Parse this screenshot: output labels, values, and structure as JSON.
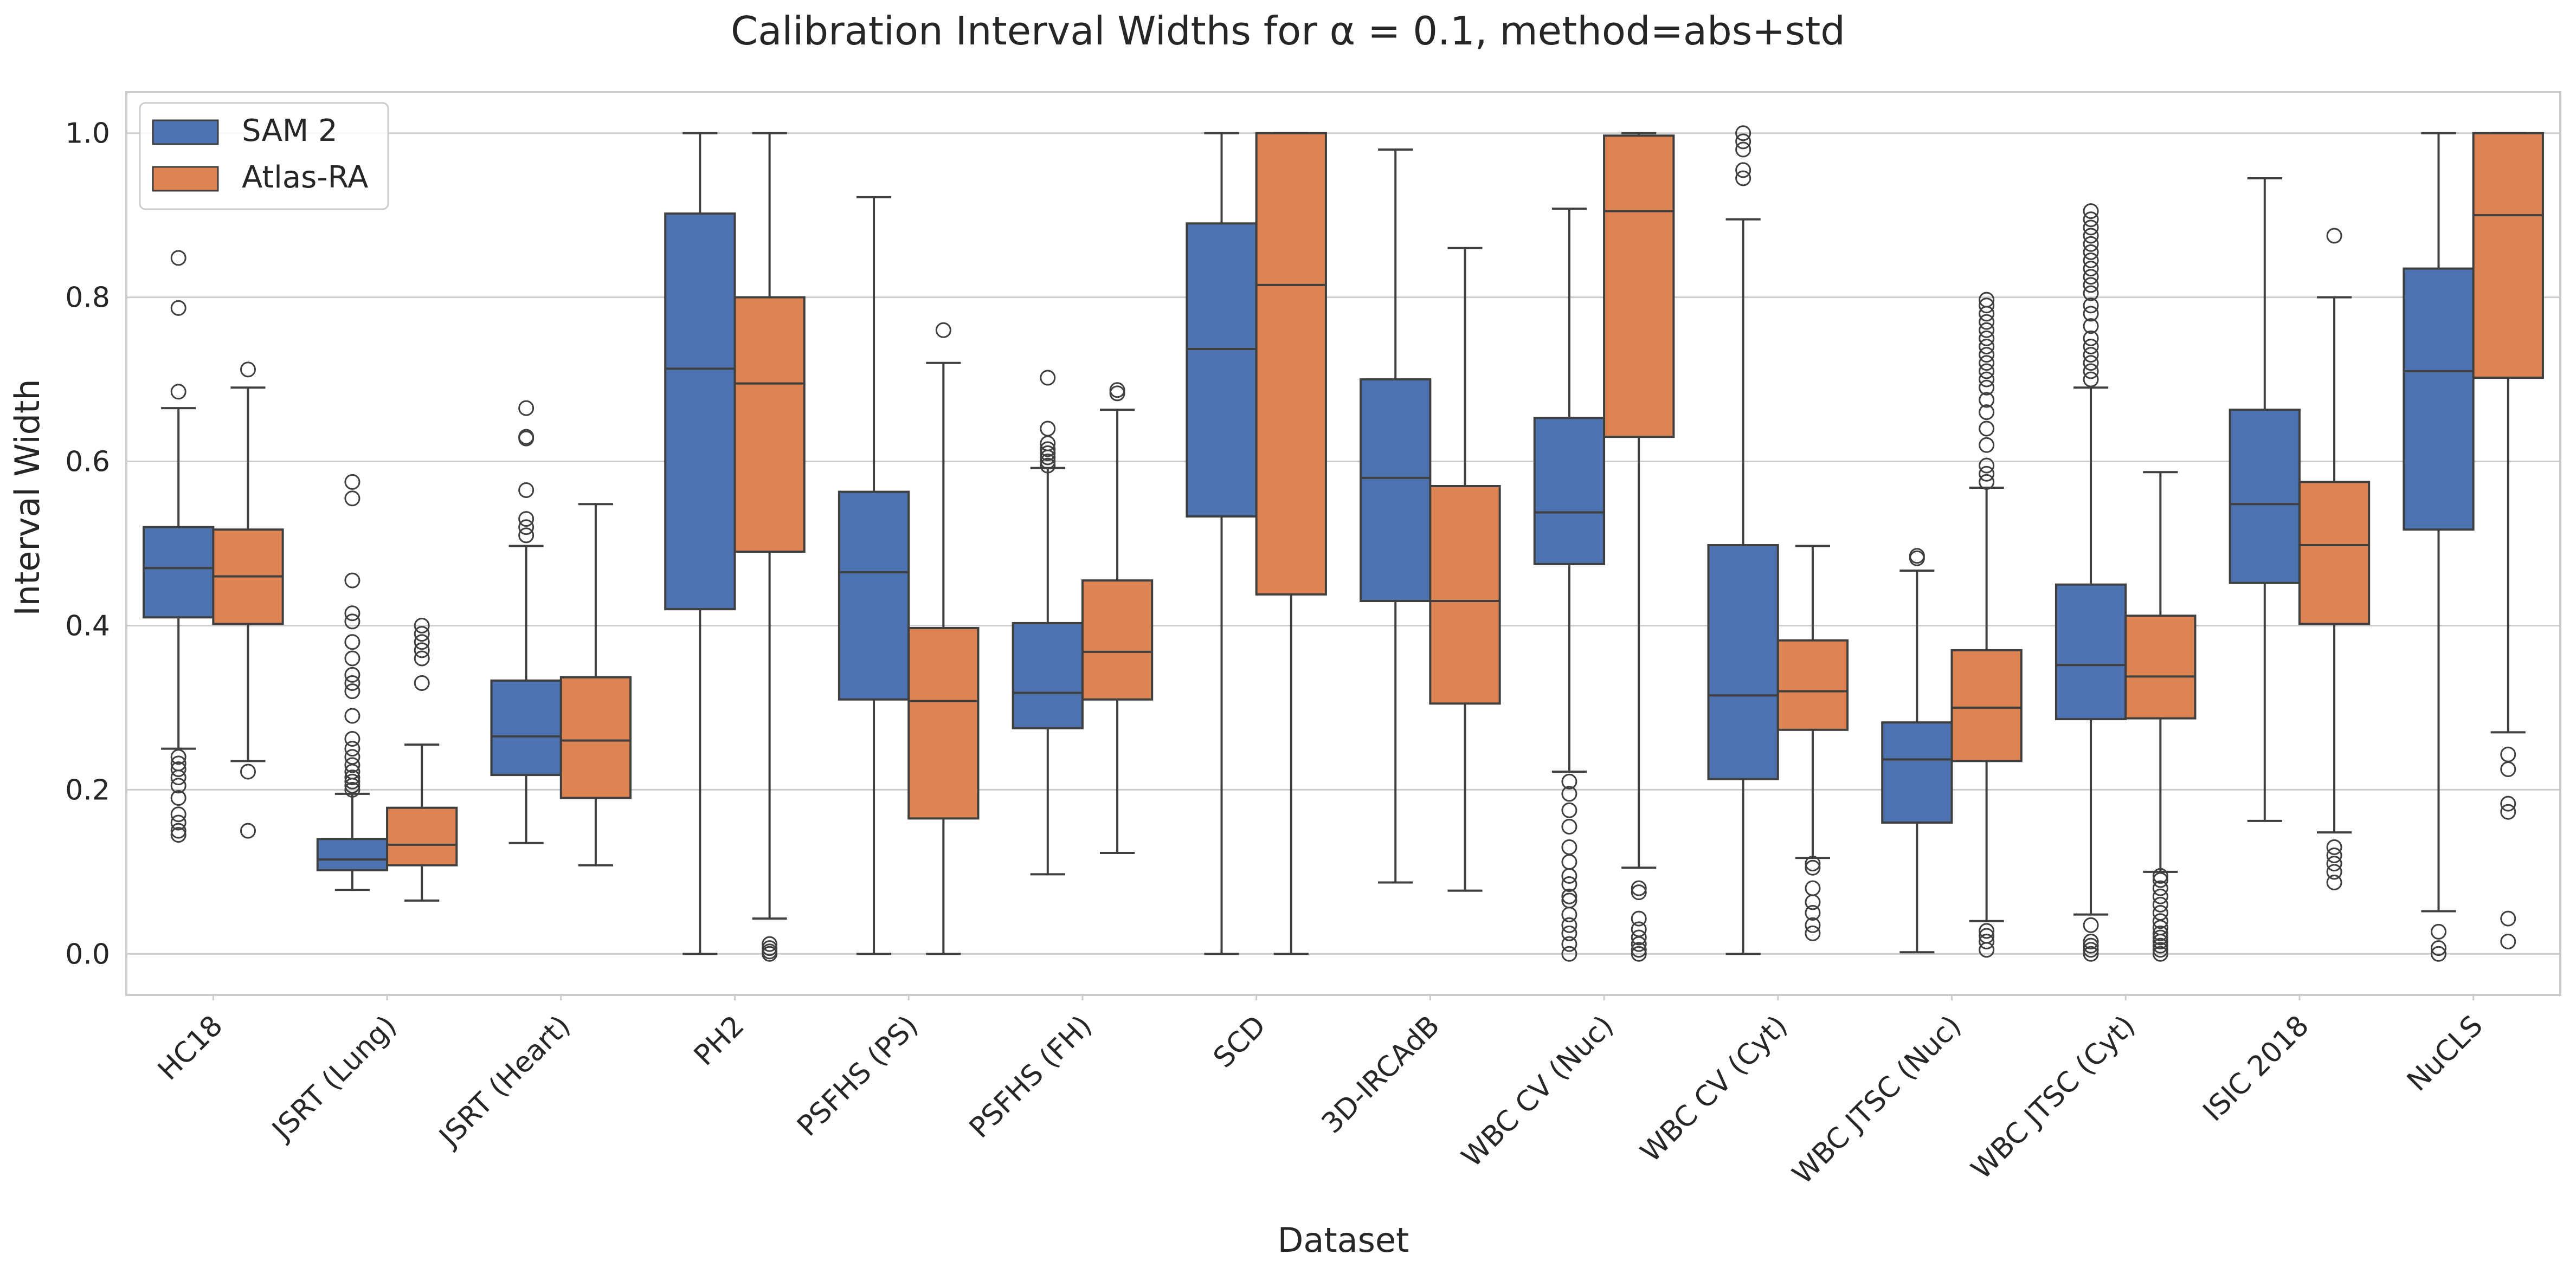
{
  "chart_data": {
    "type": "box",
    "title": "Calibration Interval Widths for α = 0.1, method=abs+std",
    "xlabel": "Dataset",
    "ylabel": "Interval Width",
    "ylim": [
      -0.05,
      1.05
    ],
    "yticks": [
      "0.0",
      "0.2",
      "0.4",
      "0.6",
      "0.8",
      "1.0"
    ],
    "grid": true,
    "legend_position": "top-left",
    "categories": [
      "HC18",
      "JSRT (Lung)",
      "JSRT (Heart)",
      "PH2",
      "PSFHS (PS)",
      "PSFHS (FH)",
      "SCD",
      "3D-IRCAdB",
      "WBC CV (Nuc)",
      "WBC CV (Cyt)",
      "WBC JTSC (Nuc)",
      "WBC JTSC (Cyt)",
      "ISIC 2018",
      "NuCLS"
    ],
    "series": [
      {
        "name": "SAM 2",
        "color": "#4c72b0",
        "boxes": [
          {
            "whislo": 0.25,
            "q1": 0.41,
            "med": 0.47,
            "q3": 0.52,
            "whishi": 0.665,
            "fliers": [
              0.145,
              0.15,
              0.16,
              0.17,
              0.19,
              0.205,
              0.215,
              0.225,
              0.232,
              0.24,
              0.685,
              0.787,
              0.848
            ]
          },
          {
            "whislo": 0.078,
            "q1": 0.102,
            "med": 0.115,
            "q3": 0.14,
            "whishi": 0.195,
            "fliers": [
              0.2,
              0.205,
              0.21,
              0.215,
              0.222,
              0.23,
              0.24,
              0.25,
              0.262,
              0.29,
              0.32,
              0.33,
              0.34,
              0.36,
              0.38,
              0.405,
              0.415,
              0.455,
              0.555,
              0.575
            ]
          },
          {
            "whislo": 0.135,
            "q1": 0.218,
            "med": 0.265,
            "q3": 0.333,
            "whishi": 0.497,
            "fliers": [
              0.51,
              0.52,
              0.53,
              0.565,
              0.628,
              0.63,
              0.665
            ]
          },
          {
            "whislo": 0.0,
            "q1": 0.42,
            "med": 0.713,
            "q3": 0.902,
            "whishi": 1.0,
            "fliers": []
          },
          {
            "whislo": 0.0,
            "q1": 0.31,
            "med": 0.465,
            "q3": 0.563,
            "whishi": 0.922,
            "fliers": []
          },
          {
            "whislo": 0.097,
            "q1": 0.275,
            "med": 0.318,
            "q3": 0.403,
            "whishi": 0.592,
            "fliers": [
              0.595,
              0.6,
              0.605,
              0.61,
              0.615,
              0.622,
              0.64,
              0.702
            ]
          },
          {
            "whislo": 0.0,
            "q1": 0.533,
            "med": 0.737,
            "q3": 0.89,
            "whishi": 1.0,
            "fliers": []
          },
          {
            "whislo": 0.087,
            "q1": 0.43,
            "med": 0.58,
            "q3": 0.7,
            "whishi": 0.98,
            "fliers": []
          },
          {
            "whislo": 0.222,
            "q1": 0.475,
            "med": 0.538,
            "q3": 0.653,
            "whishi": 0.908,
            "fliers": [
              0.0,
              0.012,
              0.025,
              0.035,
              0.048,
              0.065,
              0.07,
              0.085,
              0.095,
              0.112,
              0.13,
              0.155,
              0.175,
              0.195,
              0.21
            ]
          },
          {
            "whislo": 0.0,
            "q1": 0.213,
            "med": 0.315,
            "q3": 0.498,
            "whishi": 0.895,
            "fliers": [
              0.945,
              0.955,
              0.98,
              0.99,
              1.0
            ]
          },
          {
            "whislo": 0.002,
            "q1": 0.16,
            "med": 0.237,
            "q3": 0.282,
            "whishi": 0.467,
            "fliers": [
              0.482,
              0.485
            ]
          },
          {
            "whislo": 0.048,
            "q1": 0.286,
            "med": 0.352,
            "q3": 0.45,
            "whishi": 0.69,
            "fliers": [
              0.0,
              0.005,
              0.01,
              0.015,
              0.035,
              0.7,
              0.71,
              0.72,
              0.73,
              0.74,
              0.75,
              0.765,
              0.78,
              0.79,
              0.805,
              0.815,
              0.825,
              0.835,
              0.845,
              0.855,
              0.865,
              0.875,
              0.885,
              0.895,
              0.905
            ]
          },
          {
            "whislo": 0.162,
            "q1": 0.452,
            "med": 0.548,
            "q3": 0.663,
            "whishi": 0.945,
            "fliers": []
          },
          {
            "whislo": 0.052,
            "q1": 0.517,
            "med": 0.71,
            "q3": 0.835,
            "whishi": 1.0,
            "fliers": [
              0.0,
              0.007,
              0.027
            ]
          }
        ]
      },
      {
        "name": "Atlas-RA",
        "color": "#dd8452",
        "boxes": [
          {
            "whislo": 0.235,
            "q1": 0.402,
            "med": 0.46,
            "q3": 0.517,
            "whishi": 0.69,
            "fliers": [
              0.15,
              0.222,
              0.712
            ]
          },
          {
            "whislo": 0.065,
            "q1": 0.108,
            "med": 0.133,
            "q3": 0.178,
            "whishi": 0.255,
            "fliers": [
              0.33,
              0.36,
              0.37,
              0.38,
              0.39,
              0.4
            ]
          },
          {
            "whislo": 0.108,
            "q1": 0.19,
            "med": 0.26,
            "q3": 0.337,
            "whishi": 0.548,
            "fliers": []
          },
          {
            "whislo": 0.043,
            "q1": 0.49,
            "med": 0.695,
            "q3": 0.8,
            "whishi": 1.0,
            "fliers": [
              0.0,
              0.003,
              0.007,
              0.012
            ]
          },
          {
            "whislo": 0.0,
            "q1": 0.165,
            "med": 0.308,
            "q3": 0.397,
            "whishi": 0.72,
            "fliers": [
              0.76
            ]
          },
          {
            "whislo": 0.123,
            "q1": 0.31,
            "med": 0.368,
            "q3": 0.455,
            "whishi": 0.663,
            "fliers": [
              0.683,
              0.687
            ]
          },
          {
            "whislo": 0.0,
            "q1": 0.438,
            "med": 0.815,
            "q3": 1.0,
            "whishi": 1.0,
            "fliers": []
          },
          {
            "whislo": 0.077,
            "q1": 0.305,
            "med": 0.43,
            "q3": 0.57,
            "whishi": 0.86,
            "fliers": []
          },
          {
            "whislo": 0.105,
            "q1": 0.63,
            "med": 0.905,
            "q3": 0.997,
            "whishi": 1.0,
            "fliers": [
              0.0,
              0.005,
              0.012,
              0.02,
              0.03,
              0.043,
              0.075,
              0.08
            ]
          },
          {
            "whislo": 0.117,
            "q1": 0.273,
            "med": 0.32,
            "q3": 0.382,
            "whishi": 0.497,
            "fliers": [
              0.025,
              0.035,
              0.05,
              0.063,
              0.08,
              0.105,
              0.11
            ]
          },
          {
            "whislo": 0.04,
            "q1": 0.235,
            "med": 0.3,
            "q3": 0.37,
            "whishi": 0.568,
            "fliers": [
              0.005,
              0.015,
              0.022,
              0.028,
              0.575,
              0.585,
              0.595,
              0.62,
              0.64,
              0.66,
              0.675,
              0.69,
              0.7,
              0.71,
              0.72,
              0.73,
              0.74,
              0.75,
              0.76,
              0.77,
              0.78,
              0.79,
              0.797
            ]
          },
          {
            "whislo": 0.1,
            "q1": 0.287,
            "med": 0.338,
            "q3": 0.412,
            "whishi": 0.587,
            "fliers": [
              0.0,
              0.005,
              0.01,
              0.015,
              0.02,
              0.025,
              0.032,
              0.04,
              0.05,
              0.06,
              0.07,
              0.08,
              0.09,
              0.095
            ]
          },
          {
            "whislo": 0.148,
            "q1": 0.402,
            "med": 0.498,
            "q3": 0.575,
            "whishi": 0.8,
            "fliers": [
              0.087,
              0.1,
              0.11,
              0.12,
              0.13,
              0.875
            ]
          },
          {
            "whislo": 0.27,
            "q1": 0.702,
            "med": 0.9,
            "q3": 1.0,
            "whishi": 1.0,
            "fliers": [
              0.015,
              0.043,
              0.173,
              0.183,
              0.225,
              0.243
            ]
          }
        ]
      }
    ]
  }
}
